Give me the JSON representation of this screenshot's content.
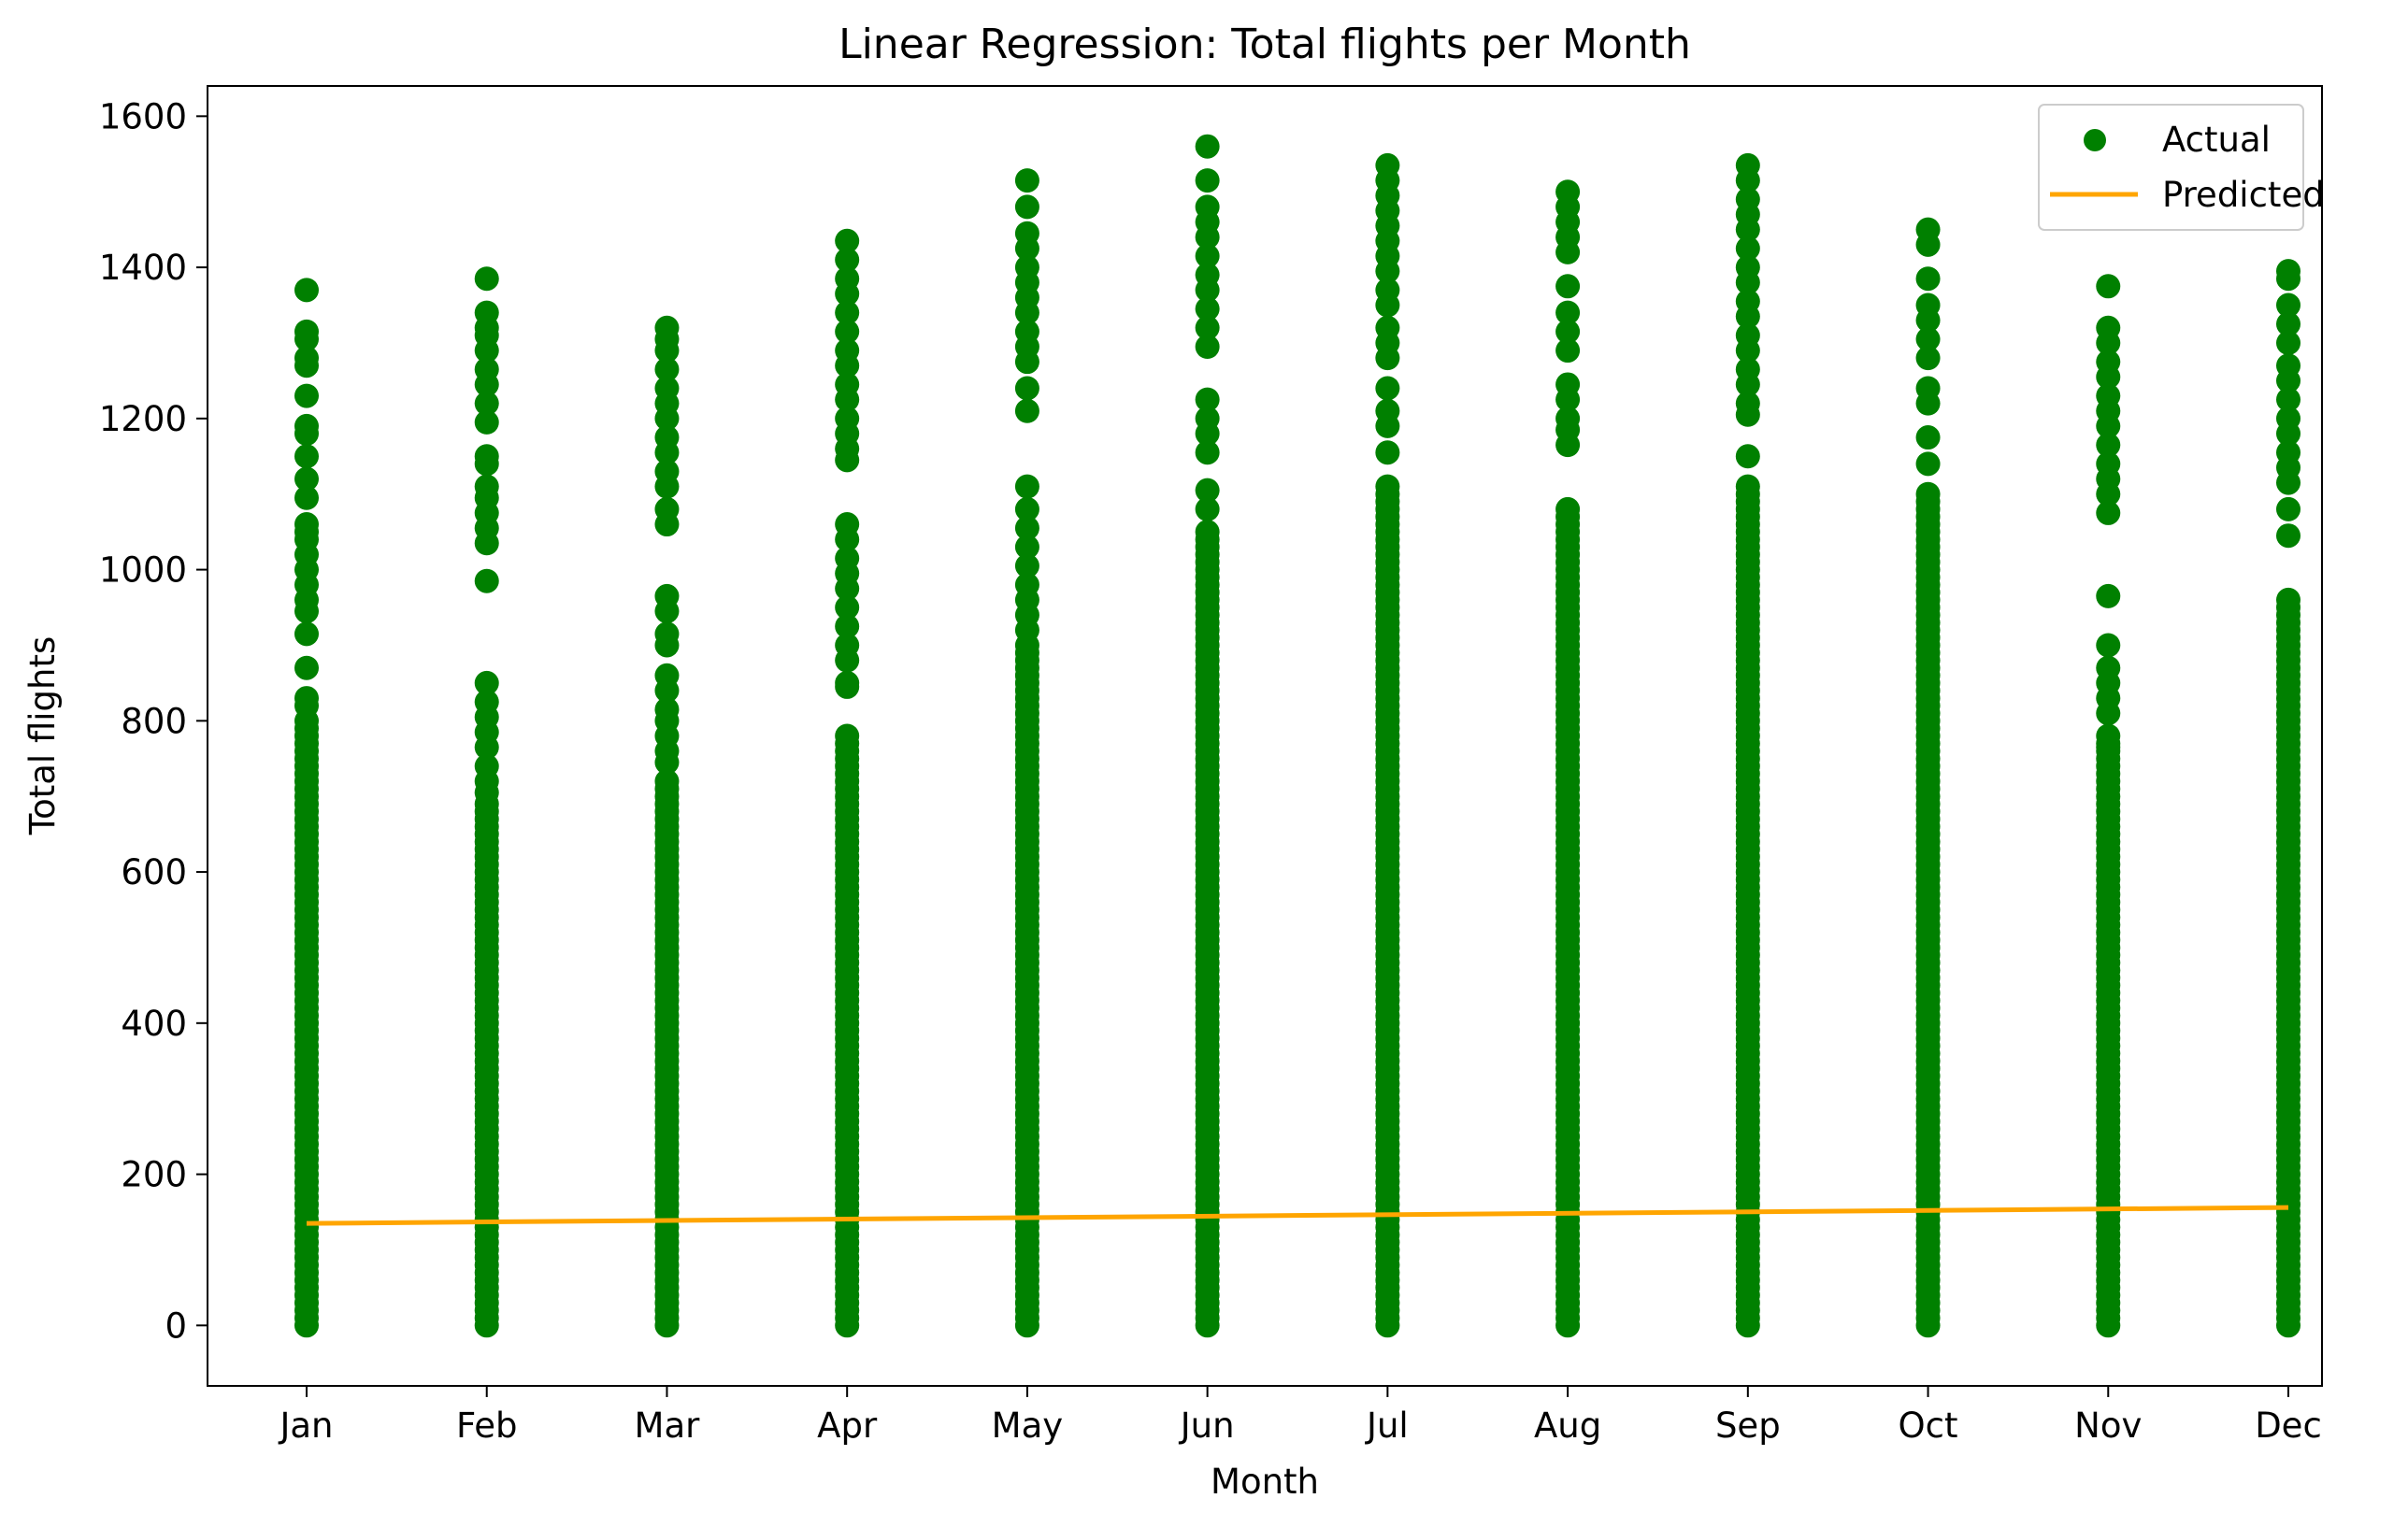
{
  "chart_data": {
    "type": "scatter",
    "title": "Linear Regression: Total flights per Month",
    "xlabel": "Month",
    "ylabel": "Total flights",
    "categories": [
      "Jan",
      "Feb",
      "Mar",
      "Apr",
      "May",
      "Jun",
      "Jul",
      "Aug",
      "Sep",
      "Oct",
      "Nov",
      "Dec"
    ],
    "ylim": [
      -80,
      1640
    ],
    "yticks": [
      0,
      200,
      400,
      600,
      800,
      1000,
      1200,
      1400,
      1600
    ],
    "grid": false,
    "legend_position": "top-right",
    "colors": {
      "actual": "#008000",
      "predicted": "#ffa500"
    },
    "series": [
      {
        "name": "Actual",
        "kind": "scatter",
        "points_by_month": [
          {
            "month": "Jan",
            "dense_range": [
              0,
              800
            ],
            "outliers": [
              1370,
              1315,
              1305,
              1280,
              1270,
              1230,
              1190,
              1180,
              1150,
              1120,
              1095,
              1060,
              1050,
              1040,
              1020,
              1000,
              980,
              960,
              945,
              915,
              870,
              830,
              820
            ]
          },
          {
            "month": "Feb",
            "dense_range": [
              0,
              690
            ],
            "outliers": [
              1385,
              1340,
              1320,
              1310,
              1290,
              1265,
              1245,
              1220,
              1195,
              1150,
              1140,
              1110,
              1095,
              1075,
              1055,
              1035,
              985,
              850,
              825,
              805,
              785,
              765,
              740,
              720,
              705
            ]
          },
          {
            "month": "Mar",
            "dense_range": [
              0,
              720
            ],
            "outliers": [
              1320,
              1305,
              1290,
              1265,
              1240,
              1220,
              1200,
              1175,
              1155,
              1130,
              1110,
              1080,
              1060,
              965,
              945,
              915,
              900,
              860,
              840,
              815,
              800,
              780,
              760,
              745
            ]
          },
          {
            "month": "Apr",
            "dense_range": [
              0,
              780
            ],
            "outliers": [
              1435,
              1410,
              1385,
              1365,
              1340,
              1315,
              1290,
              1270,
              1245,
              1225,
              1200,
              1180,
              1160,
              1145,
              1060,
              1040,
              1015,
              995,
              975,
              950,
              925,
              900,
              880,
              850,
              845
            ]
          },
          {
            "month": "May",
            "dense_range": [
              0,
              900
            ],
            "outliers": [
              1515,
              1480,
              1445,
              1425,
              1400,
              1380,
              1360,
              1340,
              1315,
              1295,
              1275,
              1240,
              1210,
              1110,
              1080,
              1055,
              1030,
              1005,
              980,
              960,
              940,
              920
            ]
          },
          {
            "month": "Jun",
            "dense_range": [
              0,
              1050
            ],
            "outliers": [
              1560,
              1515,
              1480,
              1460,
              1440,
              1415,
              1390,
              1370,
              1345,
              1320,
              1295,
              1225,
              1200,
              1180,
              1155,
              1105,
              1080
            ]
          },
          {
            "month": "Jul",
            "dense_range": [
              0,
              1110
            ],
            "outliers": [
              1535,
              1515,
              1495,
              1475,
              1455,
              1435,
              1415,
              1395,
              1370,
              1350,
              1320,
              1300,
              1280,
              1240,
              1210,
              1190,
              1155
            ]
          },
          {
            "month": "Aug",
            "dense_range": [
              0,
              1085
            ],
            "outliers": [
              1500,
              1480,
              1460,
              1440,
              1420,
              1375,
              1340,
              1315,
              1290,
              1245,
              1225,
              1200,
              1185,
              1165
            ]
          },
          {
            "month": "Sep",
            "dense_range": [
              0,
              1110
            ],
            "outliers": [
              1535,
              1515,
              1490,
              1470,
              1450,
              1425,
              1400,
              1380,
              1355,
              1335,
              1310,
              1290,
              1265,
              1245,
              1220,
              1205,
              1150
            ]
          },
          {
            "month": "Oct",
            "dense_range": [
              0,
              1100
            ],
            "outliers": [
              1450,
              1430,
              1385,
              1350,
              1330,
              1305,
              1280,
              1240,
              1220,
              1175,
              1140
            ]
          },
          {
            "month": "Nov",
            "dense_range": [
              0,
              780
            ],
            "outliers": [
              1375,
              1320,
              1300,
              1275,
              1255,
              1230,
              1210,
              1190,
              1165,
              1140,
              1120,
              1100,
              1075,
              965,
              900,
              870,
              850,
              830,
              810,
              765
            ]
          },
          {
            "month": "Dec",
            "dense_range": [
              0,
              960
            ],
            "outliers": [
              1395,
              1385,
              1350,
              1325,
              1300,
              1270,
              1250,
              1225,
              1200,
              1180,
              1155,
              1135,
              1115,
              1080,
              1045
            ]
          }
        ]
      },
      {
        "name": "Predicted",
        "kind": "line",
        "x": [
          "Jan",
          "Dec"
        ],
        "values": [
          135,
          156
        ]
      }
    ]
  }
}
